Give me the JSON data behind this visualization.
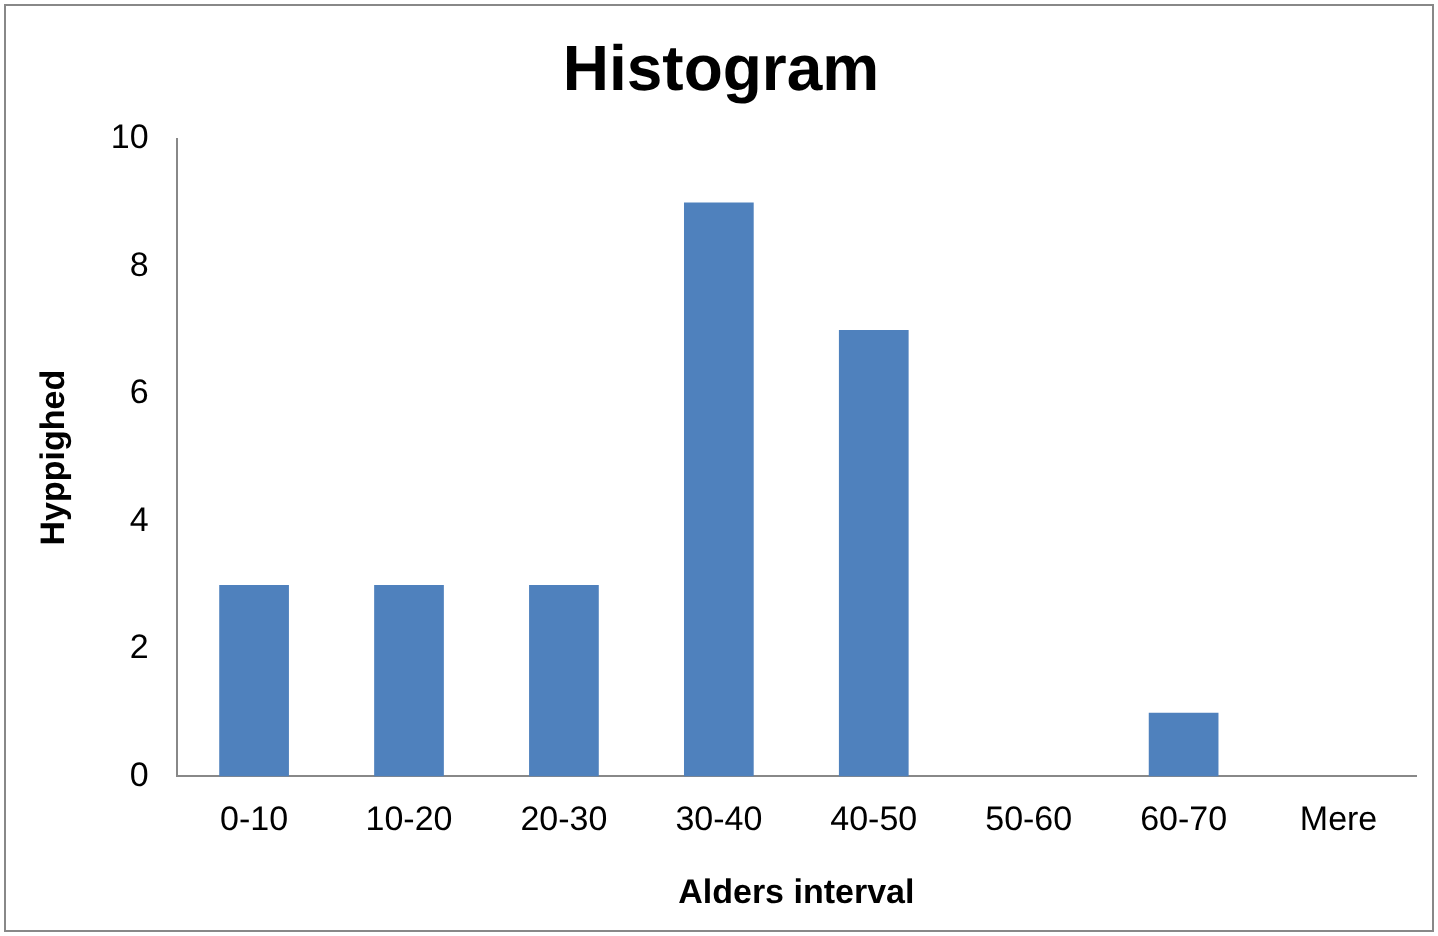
{
  "chart_data": {
    "type": "bar",
    "title": "Histogram",
    "xlabel": "Alders interval",
    "ylabel": "Hyppighed",
    "categories": [
      "0-10",
      "10-20",
      "20-30",
      "30-40",
      "40-50",
      "50-60",
      "60-70",
      "Mere"
    ],
    "values": [
      3,
      3,
      3,
      9,
      7,
      0,
      1,
      0
    ],
    "color": "#4f81bd",
    "ylim": [
      0,
      10
    ],
    "yticks": [
      0,
      2,
      4,
      6,
      8,
      10
    ],
    "grid": false,
    "legend": false
  }
}
